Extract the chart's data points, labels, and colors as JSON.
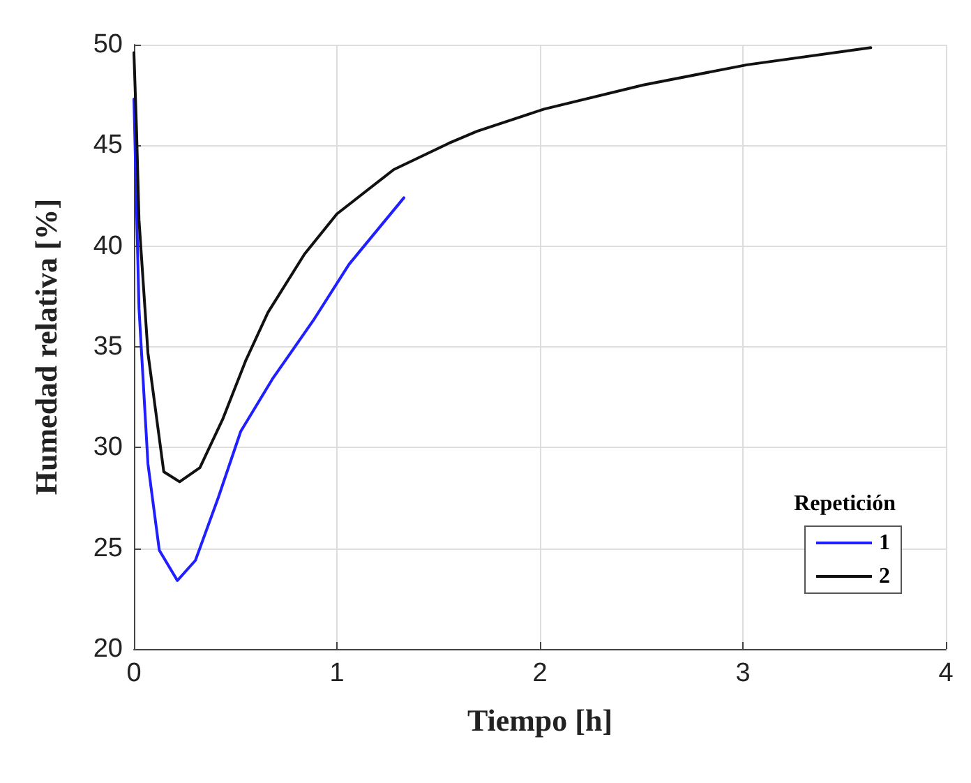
{
  "chart_data": {
    "type": "line",
    "xlabel": "Tiempo [h]",
    "ylabel": "Humedad relativa [%]",
    "legend_title": "Repetición",
    "legend": "bottom right",
    "grid": true,
    "line_style": "solid",
    "marker": "none",
    "xlim": [
      0,
      4
    ],
    "xticks": [
      0,
      1,
      2,
      3,
      4
    ],
    "ylim": [
      20,
      50
    ],
    "yticks": [
      20,
      25,
      30,
      35,
      40,
      45,
      50
    ],
    "series": [
      {
        "name": "1",
        "color": "#1f1fff",
        "x": [
          0,
          0.025,
          0.069,
          0.125,
          0.214,
          0.303,
          0.415,
          0.526,
          0.682,
          0.883,
          1.06,
          1.33
        ],
        "values": [
          47.3,
          36.9,
          29.2,
          24.9,
          23.4,
          24.4,
          27.5,
          30.8,
          33.4,
          36.3,
          39.1,
          42.4
        ]
      },
      {
        "name": "2",
        "color": "#111111",
        "x": [
          0,
          0.013,
          0.025,
          0.069,
          0.147,
          0.225,
          0.325,
          0.437,
          0.55,
          0.66,
          0.84,
          1.0,
          1.28,
          1.55,
          1.69,
          2.02,
          2.51,
          3.02,
          3.63
        ],
        "values": [
          49.6,
          45.7,
          41.3,
          34.7,
          28.8,
          28.3,
          29.0,
          31.4,
          34.3,
          36.7,
          39.6,
          41.6,
          43.8,
          45.1,
          45.7,
          46.8,
          48.0,
          49.0,
          49.85
        ]
      }
    ]
  }
}
